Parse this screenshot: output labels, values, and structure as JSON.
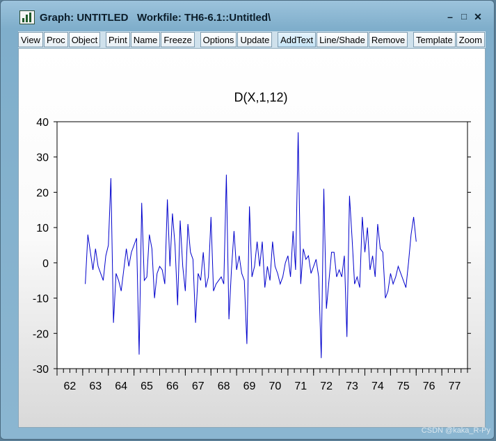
{
  "window": {
    "title": "Graph: UNTITLED   Workfile: TH6-6.1::Untitled\\",
    "controls": {
      "minimize": "–",
      "maximize": "□",
      "close": "✕"
    }
  },
  "toolbar": {
    "groups": [
      [
        "View",
        "Proc",
        "Object"
      ],
      [
        "Print",
        "Name",
        "Freeze"
      ],
      [
        "Options",
        "Update"
      ],
      [
        "AddText",
        "Line/Shade",
        "Remove"
      ],
      [
        "Template",
        "Zoom"
      ]
    ],
    "active": "AddText"
  },
  "watermark": "CSDN @kaka_R-Py",
  "icons": {
    "app": "bar-chart-icon"
  },
  "colors": {
    "series": "#0000cc",
    "accent": "#9cc3dc"
  },
  "chart_data": {
    "type": "line",
    "title": "D(X,1,12)",
    "xlabel": "",
    "ylabel": "",
    "ylim": [
      -30,
      40
    ],
    "yticks": [
      -30,
      -20,
      -10,
      0,
      10,
      20,
      30,
      40
    ],
    "xlim": [
      61.5,
      77.5
    ],
    "xticks": [
      "62",
      "63",
      "64",
      "65",
      "66",
      "67",
      "68",
      "69",
      "70",
      "71",
      "72",
      "73",
      "74",
      "75",
      "76",
      "77"
    ],
    "grid": false,
    "legend": "none",
    "series": [
      {
        "x": [
          62.6,
          62.7,
          62.8,
          62.9,
          63.0,
          63.1,
          63.2,
          63.3,
          63.4,
          63.5,
          63.6,
          63.7,
          63.8,
          63.9,
          64.0,
          64.1,
          64.2,
          64.3,
          64.4,
          64.5,
          64.6,
          64.7,
          64.8,
          64.9,
          65.0,
          65.1,
          65.2,
          65.3,
          65.4,
          65.5,
          65.6,
          65.7,
          65.8,
          65.9,
          66.0,
          66.1,
          66.2,
          66.3,
          66.4,
          66.5,
          66.6,
          66.7,
          66.8,
          66.9,
          67.0,
          67.1,
          67.2,
          67.3,
          67.4,
          67.5,
          67.6,
          67.7,
          67.8,
          67.9,
          68.0,
          68.1,
          68.2,
          68.3,
          68.4,
          68.5,
          68.6,
          68.7,
          68.8,
          68.9,
          69.0,
          69.1,
          69.2,
          69.3,
          69.4,
          69.5,
          69.6,
          69.7,
          69.8,
          69.9,
          70.0,
          70.1,
          70.2,
          70.3,
          70.4,
          70.5,
          70.6,
          70.7,
          70.8,
          70.9,
          71.0,
          71.1,
          71.2,
          71.3,
          71.4,
          71.5,
          71.6,
          71.7,
          71.8,
          71.9,
          72.0,
          72.1,
          72.2,
          72.3,
          72.4,
          72.5,
          72.6,
          72.7,
          72.8,
          72.9,
          73.0,
          73.1,
          73.2,
          73.3,
          73.4,
          73.5,
          73.6,
          73.7,
          73.8,
          73.9,
          74.0,
          74.1,
          74.2,
          74.3,
          74.4,
          74.5,
          74.6,
          74.7,
          74.8,
          74.9,
          75.0,
          75.1,
          75.2,
          75.3,
          75.4,
          75.5
        ],
        "y": [
          -6,
          8,
          3,
          -2,
          4,
          -1,
          -3,
          -5,
          2,
          5,
          24,
          -17,
          -3,
          -5,
          -8,
          -2,
          4,
          -1,
          3,
          5,
          7,
          -26,
          17,
          -5,
          -4,
          8,
          4,
          -10,
          -3,
          -1,
          -2,
          -6,
          18,
          -1,
          14,
          5,
          -12,
          12,
          -1,
          -8,
          11,
          3,
          1,
          -17,
          -3,
          -5,
          3,
          -7,
          -4,
          13,
          -8,
          -6,
          -5,
          -4,
          -6,
          25,
          -16,
          -2,
          9,
          -2,
          2,
          -3,
          -5,
          -23,
          16,
          -4,
          -1,
          6,
          -1,
          6,
          -7,
          -1,
          -5,
          6,
          -1,
          -3,
          -6,
          -4,
          0,
          2,
          -4,
          9,
          -2,
          37,
          -6,
          4,
          1,
          2,
          -3,
          -1,
          1,
          -4,
          -27,
          21,
          -13,
          -5,
          3,
          3,
          -4,
          -2,
          -4,
          2,
          -21,
          19,
          7,
          -6,
          -4,
          -7,
          13,
          3,
          10,
          -2,
          2,
          -4,
          11,
          4,
          3,
          -10,
          -8,
          -3,
          -6,
          -4,
          -1,
          -3,
          -5,
          -7,
          0,
          8,
          13,
          6
        ]
      }
    ]
  }
}
